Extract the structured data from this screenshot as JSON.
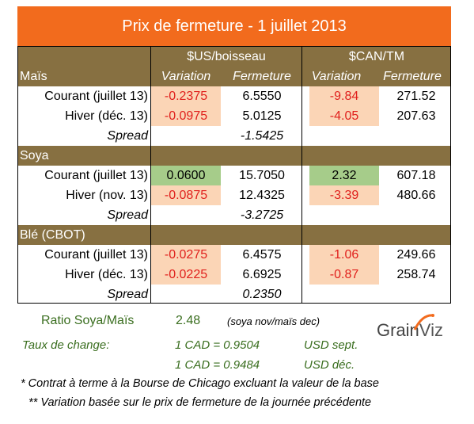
{
  "title": "Prix de fermeture - 1 juillet 2013",
  "headers": {
    "usd_group": "$US/boisseau",
    "cad_group": "$CAN/TM",
    "variation": "Variation",
    "fermeture": "Fermeture"
  },
  "sections": [
    {
      "name": "Maïs",
      "rows": [
        {
          "label": "Courant (juillet 13)",
          "usd_var": "-0.2375",
          "usd_close": "6.5550",
          "cad_var": "-9.84",
          "cad_close": "271.52"
        },
        {
          "label": "Hiver (déc. 13)",
          "usd_var": "-0.0975",
          "usd_close": "5.0125",
          "cad_var": "-4.05",
          "cad_close": "207.63"
        }
      ],
      "spread_label": "Spread",
      "spread_value": "-1.5425"
    },
    {
      "name": "Soya",
      "rows": [
        {
          "label": "Courant (juillet 13)",
          "usd_var": "0.0600",
          "usd_close": "15.7050",
          "cad_var": "2.32",
          "cad_close": "607.18"
        },
        {
          "label": "Hiver (nov. 13)",
          "usd_var": "-0.0875",
          "usd_close": "12.4325",
          "cad_var": "-3.39",
          "cad_close": "480.66"
        }
      ],
      "spread_label": "Spread",
      "spread_value": "-3.2725"
    },
    {
      "name": "Blé (CBOT)",
      "rows": [
        {
          "label": "Courant (juillet 13)",
          "usd_var": "-0.0275",
          "usd_close": "6.4575",
          "cad_var": "-1.06",
          "cad_close": "249.66"
        },
        {
          "label": "Hiver (déc. 13)",
          "usd_var": "-0.0225",
          "usd_close": "6.6925",
          "cad_var": "-0.87",
          "cad_close": "258.74"
        }
      ],
      "spread_label": "Spread",
      "spread_value": "0.2350"
    }
  ],
  "ratio": {
    "label": "Ratio Soya/Maïs",
    "value": "2.48",
    "note": "(soya nov/maïs dec)"
  },
  "exchange": {
    "label": "Taux de change:",
    "rate1": "1 CAD =  0.9504",
    "rate1_unit": "USD sept.",
    "rate2": "1 CAD =  0.9484",
    "rate2_unit": "USD déc."
  },
  "notes": {
    "note1": "* Contrat à terme à la Bourse de Chicago excluant la valeur de la base",
    "note2": "** Variation basée sur le prix de fermeture de la journée précédente"
  },
  "logo": {
    "text_grain": "Grain",
    "text_viz": "Viz"
  },
  "colors": {
    "title_bg": "#f26b1d",
    "band_bg": "#877041",
    "negative_bg": "#fbd5b6",
    "positive_bg": "#a6cc8a",
    "negative_text": "#e0201c",
    "ratio_text": "#3a6e1f"
  }
}
